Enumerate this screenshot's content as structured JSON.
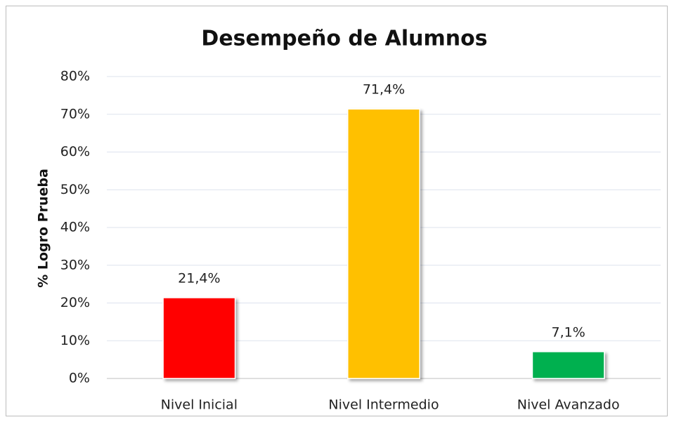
{
  "chart_data": {
    "type": "bar",
    "title": "Desempeño de Alumnos",
    "y_label": "% Logro Prueba",
    "categories": [
      "Nivel Inicial",
      "Nivel Intermedio",
      "Nivel Avanzado"
    ],
    "values": [
      21.4,
      71.4,
      7.1
    ],
    "value_labels": [
      "21,4%",
      "71,4%",
      "7,1%"
    ],
    "colors": [
      "#ff0000",
      "#ffc000",
      "#00b050"
    ],
    "ylim": [
      0,
      80
    ],
    "yticks": [
      {
        "value": 0,
        "label": "0%"
      },
      {
        "value": 10,
        "label": "10%"
      },
      {
        "value": 20,
        "label": "20%"
      },
      {
        "value": 30,
        "label": "30%"
      },
      {
        "value": 40,
        "label": "40%"
      },
      {
        "value": 50,
        "label": "50%"
      },
      {
        "value": 60,
        "label": "60%"
      },
      {
        "value": 70,
        "label": "70%"
      },
      {
        "value": 80,
        "label": "80%"
      }
    ],
    "grid": true
  }
}
